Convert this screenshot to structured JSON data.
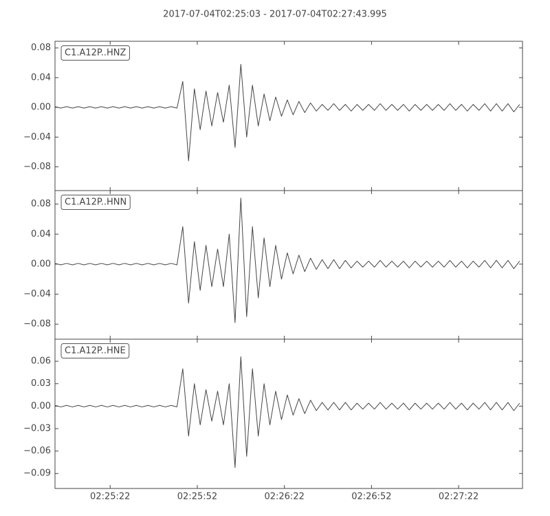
{
  "title": "2017-07-04T02:25:03  -  2017-07-04T02:27:43.995",
  "chart_data": [
    {
      "type": "line",
      "x": [
        0,
        2,
        4,
        6,
        8,
        10,
        12,
        14,
        16,
        18,
        20,
        22,
        24,
        26,
        28,
        30,
        32,
        34,
        36,
        38,
        40,
        42,
        44,
        46,
        48,
        50,
        52,
        54,
        56,
        58,
        60,
        62,
        64,
        66,
        68,
        70,
        72,
        74,
        76,
        78,
        80,
        82,
        84,
        86,
        88,
        90,
        92,
        94,
        96,
        98,
        100,
        102,
        104,
        106,
        108,
        110,
        112,
        114,
        116,
        118,
        120,
        122,
        124,
        126,
        128,
        130,
        132,
        134,
        136,
        138,
        140,
        142,
        144,
        146,
        148,
        150,
        152,
        154,
        156,
        158,
        160
      ],
      "xlim": [
        0,
        160.995
      ],
      "ylim": [
        -0.112,
        0.089
      ],
      "yticks": [
        0.08,
        0.04,
        {
          "value": 0,
          "label": "0.00"
        },
        {
          "value": -0.04,
          "label": "−0.04"
        },
        {
          "value": -0.08,
          "label": "−0.08"
        }
      ],
      "series": [
        {
          "name": "C1.A12P..HNZ",
          "color": "#444444",
          "values": [
            0.001,
            -0.001,
            0.001,
            -0.001,
            0.001,
            -0.001,
            0.001,
            -0.001,
            0.001,
            -0.001,
            0.001,
            -0.001,
            0.001,
            -0.001,
            0.001,
            -0.001,
            0.001,
            -0.001,
            0.001,
            -0.001,
            0.001,
            -0.001,
            0.035,
            -0.072,
            0.025,
            -0.03,
            0.022,
            -0.025,
            0.02,
            -0.02,
            0.03,
            -0.054,
            0.058,
            -0.04,
            0.03,
            -0.025,
            0.018,
            -0.018,
            0.014,
            -0.012,
            0.01,
            -0.01,
            0.008,
            -0.007,
            0.006,
            -0.005,
            0.004,
            -0.004,
            0.005,
            -0.004,
            0.004,
            -0.005,
            0.004,
            -0.004,
            0.004,
            -0.004,
            0.005,
            -0.004,
            0.004,
            -0.004,
            0.004,
            -0.005,
            0.004,
            -0.004,
            0.004,
            -0.004,
            0.004,
            -0.004,
            0.005,
            -0.004,
            0.004,
            -0.005,
            0.004,
            -0.004,
            0.005,
            -0.005,
            0.005,
            -0.005,
            0.005,
            -0.006,
            0.004
          ]
        }
      ]
    },
    {
      "type": "line",
      "x": [
        0,
        2,
        4,
        6,
        8,
        10,
        12,
        14,
        16,
        18,
        20,
        22,
        24,
        26,
        28,
        30,
        32,
        34,
        36,
        38,
        40,
        42,
        44,
        46,
        48,
        50,
        52,
        54,
        56,
        58,
        60,
        62,
        64,
        66,
        68,
        70,
        72,
        74,
        76,
        78,
        80,
        82,
        84,
        86,
        88,
        90,
        92,
        94,
        96,
        98,
        100,
        102,
        104,
        106,
        108,
        110,
        112,
        114,
        116,
        118,
        120,
        122,
        124,
        126,
        128,
        130,
        132,
        134,
        136,
        138,
        140,
        142,
        144,
        146,
        148,
        150,
        152,
        154,
        156,
        158,
        160
      ],
      "xlim": [
        0,
        160.995
      ],
      "ylim": [
        -0.1,
        0.098
      ],
      "yticks": [
        0.08,
        0.04,
        {
          "value": 0,
          "label": "0.00"
        },
        {
          "value": -0.04,
          "label": "−0.04"
        },
        {
          "value": -0.08,
          "label": "−0.08"
        }
      ],
      "series": [
        {
          "name": "C1.A12P..HNN",
          "color": "#444444",
          "values": [
            0.001,
            -0.001,
            0.001,
            -0.001,
            0.001,
            -0.001,
            0.001,
            -0.001,
            0.001,
            -0.001,
            0.001,
            -0.001,
            0.001,
            -0.001,
            0.001,
            -0.001,
            0.001,
            -0.001,
            0.001,
            -0.001,
            0.001,
            -0.001,
            0.05,
            -0.052,
            0.03,
            -0.035,
            0.025,
            -0.03,
            0.02,
            -0.03,
            0.04,
            -0.078,
            0.088,
            -0.07,
            0.05,
            -0.045,
            0.035,
            -0.03,
            0.025,
            -0.02,
            0.015,
            -0.013,
            0.012,
            -0.01,
            0.008,
            -0.007,
            0.006,
            -0.006,
            0.006,
            -0.006,
            0.005,
            -0.005,
            0.004,
            -0.004,
            0.004,
            -0.004,
            0.005,
            -0.004,
            0.004,
            -0.004,
            0.004,
            -0.005,
            0.004,
            -0.004,
            0.004,
            -0.004,
            0.004,
            -0.004,
            0.005,
            -0.004,
            0.004,
            -0.005,
            0.004,
            -0.004,
            0.005,
            -0.005,
            0.005,
            -0.005,
            0.005,
            -0.006,
            0.004
          ]
        }
      ]
    },
    {
      "type": "line",
      "x": [
        0,
        2,
        4,
        6,
        8,
        10,
        12,
        14,
        16,
        18,
        20,
        22,
        24,
        26,
        28,
        30,
        32,
        34,
        36,
        38,
        40,
        42,
        44,
        46,
        48,
        50,
        52,
        54,
        56,
        58,
        60,
        62,
        64,
        66,
        68,
        70,
        72,
        74,
        76,
        78,
        80,
        82,
        84,
        86,
        88,
        90,
        92,
        94,
        96,
        98,
        100,
        102,
        104,
        106,
        108,
        110,
        112,
        114,
        116,
        118,
        120,
        122,
        124,
        126,
        128,
        130,
        132,
        134,
        136,
        138,
        140,
        142,
        144,
        146,
        148,
        150,
        152,
        154,
        156,
        158,
        160
      ],
      "xlim": [
        0,
        160.995
      ],
      "ylim": [
        -0.11,
        0.0895
      ],
      "xticks": [
        {
          "value": 19,
          "label": "02:25:22"
        },
        {
          "value": 49,
          "label": "02:25:52"
        },
        {
          "value": 79,
          "label": "02:26:22"
        },
        {
          "value": 109,
          "label": "02:26:52"
        },
        {
          "value": 139,
          "label": "02:27:22"
        }
      ],
      "yticks": [
        0.06,
        0.03,
        {
          "value": 0,
          "label": "0.00"
        },
        {
          "value": -0.03,
          "label": "−0.03"
        },
        {
          "value": -0.06,
          "label": "−0.06"
        },
        {
          "value": -0.09,
          "label": "−0.09"
        }
      ],
      "series": [
        {
          "name": "C1.A12P..HNE",
          "color": "#444444",
          "values": [
            0.001,
            -0.001,
            0.001,
            -0.001,
            0.001,
            -0.001,
            0.001,
            -0.001,
            0.001,
            -0.001,
            0.001,
            -0.001,
            0.001,
            -0.001,
            0.001,
            -0.001,
            0.001,
            -0.001,
            0.001,
            -0.001,
            0.001,
            -0.001,
            0.05,
            -0.04,
            0.03,
            -0.025,
            0.022,
            -0.02,
            0.02,
            -0.025,
            0.03,
            -0.082,
            0.066,
            -0.067,
            0.05,
            -0.04,
            0.03,
            -0.025,
            0.02,
            -0.018,
            0.015,
            -0.012,
            0.01,
            -0.01,
            0.008,
            -0.006,
            0.005,
            -0.005,
            0.005,
            -0.005,
            0.005,
            -0.005,
            0.004,
            -0.004,
            0.004,
            -0.004,
            0.005,
            -0.004,
            0.004,
            -0.004,
            0.004,
            -0.005,
            0.004,
            -0.004,
            0.004,
            -0.004,
            0.004,
            -0.004,
            0.005,
            -0.004,
            0.004,
            -0.005,
            0.004,
            -0.004,
            0.005,
            -0.005,
            0.005,
            -0.005,
            0.005,
            -0.006,
            0.004
          ]
        }
      ]
    }
  ]
}
